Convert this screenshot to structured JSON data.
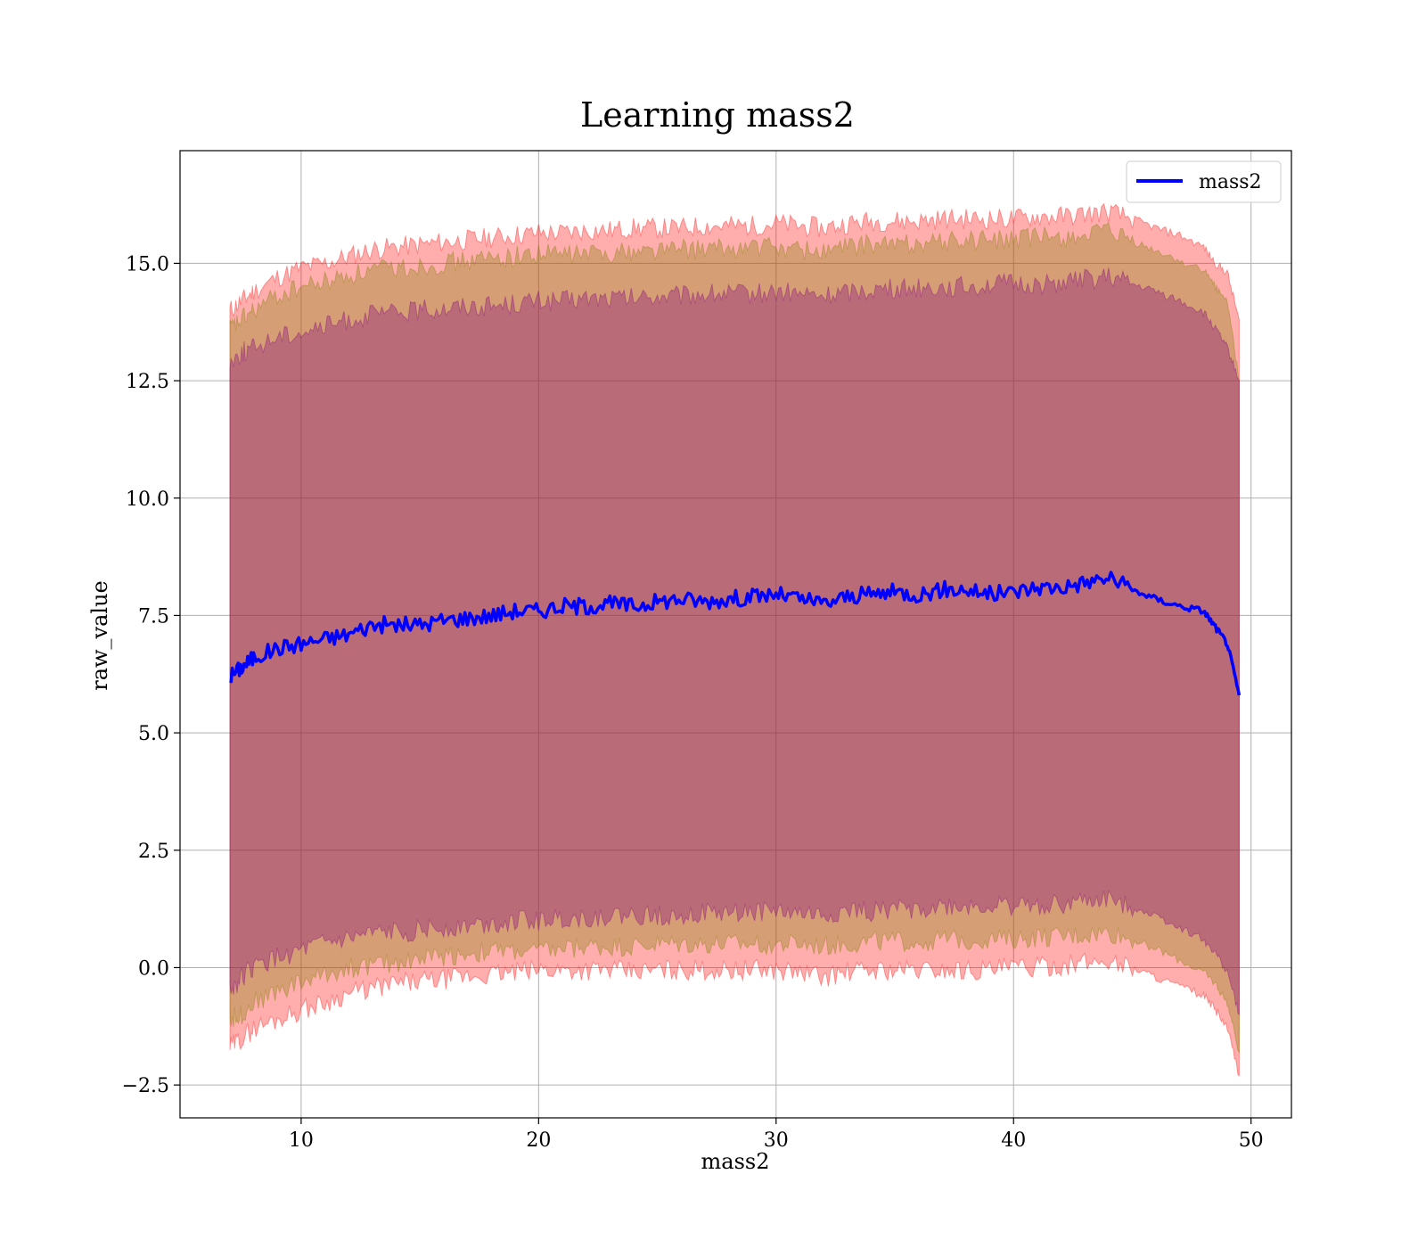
{
  "chart_data": {
    "type": "line",
    "title": "Learning mass2",
    "xlabel": "mass2",
    "ylabel": "raw_value",
    "xlim": [
      4.9,
      51.7
    ],
    "ylim": [
      -3.2,
      17.4
    ],
    "x_ticks": [
      10,
      20,
      30,
      40,
      50
    ],
    "x_tick_labels": [
      "10",
      "20",
      "30",
      "40",
      "50"
    ],
    "y_ticks": [
      -2.5,
      0.0,
      2.5,
      5.0,
      7.5,
      10.0,
      12.5,
      15.0
    ],
    "y_tick_labels": [
      "−2.5",
      "0.0",
      "2.5",
      "5.0",
      "7.5",
      "10.0",
      "12.5",
      "15.0"
    ],
    "grid": true,
    "legend": {
      "placement": "top-right",
      "entries": [
        "mass2"
      ]
    },
    "x": [
      7.0,
      7.5,
      8.0,
      9.0,
      10.0,
      11.0,
      12.0,
      13.0,
      14.0,
      15.0,
      16.0,
      17.0,
      18.0,
      19.0,
      20.0,
      21.0,
      22.0,
      23.0,
      24.0,
      25.0,
      26.0,
      27.0,
      28.0,
      29.0,
      30.0,
      31.0,
      32.0,
      33.0,
      34.0,
      35.0,
      36.0,
      37.0,
      38.0,
      39.0,
      40.0,
      41.0,
      42.0,
      43.0,
      44.0,
      45.0,
      46.0,
      47.0,
      48.0,
      48.5,
      49.0,
      49.5
    ],
    "series": [
      {
        "name": "mass2",
        "color": "#0000ff",
        "values": [
          6.2,
          6.4,
          6.6,
          6.8,
          6.9,
          7.0,
          7.1,
          7.3,
          7.3,
          7.3,
          7.4,
          7.45,
          7.5,
          7.6,
          7.6,
          7.7,
          7.7,
          7.75,
          7.7,
          7.8,
          7.85,
          7.8,
          7.85,
          7.9,
          7.95,
          7.85,
          7.75,
          7.9,
          7.95,
          8.0,
          7.95,
          8.05,
          8.05,
          7.95,
          8.0,
          8.1,
          8.1,
          8.2,
          8.3,
          8.05,
          7.85,
          7.7,
          7.6,
          7.25,
          6.9,
          5.8
        ]
      }
    ],
    "bands": [
      {
        "color": "#ff0000",
        "lower": [
          -1.7,
          -1.5,
          -1.3,
          -1.1,
          -0.9,
          -0.75,
          -0.55,
          -0.45,
          -0.35,
          -0.3,
          -0.25,
          -0.2,
          -0.15,
          -0.1,
          -0.05,
          -0.05,
          -0.05,
          -0.05,
          -0.1,
          -0.05,
          -0.05,
          -0.05,
          -0.05,
          -0.05,
          -0.05,
          -0.1,
          -0.2,
          -0.1,
          -0.05,
          -0.05,
          -0.05,
          -0.05,
          -0.05,
          -0.05,
          0.0,
          0.0,
          0.05,
          0.1,
          0.15,
          0.0,
          -0.2,
          -0.4,
          -0.6,
          -0.9,
          -1.3,
          -2.3
        ],
        "upper": [
          14.0,
          14.2,
          14.4,
          14.7,
          14.9,
          15.0,
          15.15,
          15.3,
          15.35,
          15.4,
          15.45,
          15.5,
          15.55,
          15.6,
          15.65,
          15.65,
          15.7,
          15.7,
          15.75,
          15.75,
          15.75,
          15.8,
          15.8,
          15.8,
          15.85,
          15.8,
          15.75,
          15.85,
          15.9,
          15.9,
          15.9,
          15.95,
          15.95,
          15.95,
          15.95,
          16.0,
          16.0,
          16.05,
          16.1,
          15.95,
          15.75,
          15.6,
          15.35,
          15.0,
          14.8,
          13.8
        ]
      },
      {
        "color": "#808000",
        "lower": [
          -1.1,
          -1.0,
          -0.75,
          -0.5,
          -0.3,
          -0.15,
          0.0,
          0.05,
          0.1,
          0.2,
          0.25,
          0.3,
          0.35,
          0.35,
          0.35,
          0.4,
          0.45,
          0.45,
          0.45,
          0.5,
          0.5,
          0.5,
          0.5,
          0.5,
          0.5,
          0.5,
          0.45,
          0.5,
          0.55,
          0.55,
          0.55,
          0.6,
          0.6,
          0.6,
          0.6,
          0.65,
          0.65,
          0.7,
          0.75,
          0.6,
          0.4,
          0.15,
          -0.1,
          -0.35,
          -0.75,
          -1.8
        ],
        "upper": [
          13.6,
          13.8,
          14.0,
          14.3,
          14.5,
          14.6,
          14.75,
          14.85,
          14.9,
          14.95,
          15.0,
          15.05,
          15.1,
          15.15,
          15.2,
          15.2,
          15.2,
          15.25,
          15.25,
          15.3,
          15.3,
          15.3,
          15.3,
          15.35,
          15.35,
          15.3,
          15.25,
          15.35,
          15.4,
          15.4,
          15.45,
          15.45,
          15.5,
          15.5,
          15.5,
          15.55,
          15.55,
          15.6,
          15.65,
          15.45,
          15.25,
          15.05,
          14.85,
          14.5,
          14.2,
          12.5
        ]
      },
      {
        "color": "#800080",
        "lower": [
          -0.5,
          -0.2,
          0.0,
          0.2,
          0.35,
          0.5,
          0.6,
          0.7,
          0.75,
          0.8,
          0.85,
          0.9,
          0.95,
          1.0,
          1.0,
          1.05,
          1.05,
          1.1,
          1.1,
          1.1,
          1.15,
          1.15,
          1.15,
          1.2,
          1.2,
          1.15,
          1.1,
          1.2,
          1.2,
          1.25,
          1.25,
          1.3,
          1.3,
          1.3,
          1.3,
          1.35,
          1.35,
          1.4,
          1.45,
          1.3,
          1.1,
          0.85,
          0.6,
          0.3,
          -0.1,
          -1.0
        ],
        "upper": [
          12.9,
          13.1,
          13.2,
          13.45,
          13.55,
          13.65,
          13.8,
          13.9,
          13.95,
          14.0,
          14.05,
          14.1,
          14.1,
          14.15,
          14.2,
          14.2,
          14.25,
          14.25,
          14.25,
          14.3,
          14.3,
          14.35,
          14.35,
          14.35,
          14.4,
          14.35,
          14.3,
          14.4,
          14.45,
          14.45,
          14.5,
          14.5,
          14.5,
          14.55,
          14.55,
          14.55,
          14.6,
          14.65,
          14.7,
          14.55,
          14.4,
          14.2,
          13.95,
          13.6,
          13.2,
          12.5
        ]
      }
    ]
  }
}
